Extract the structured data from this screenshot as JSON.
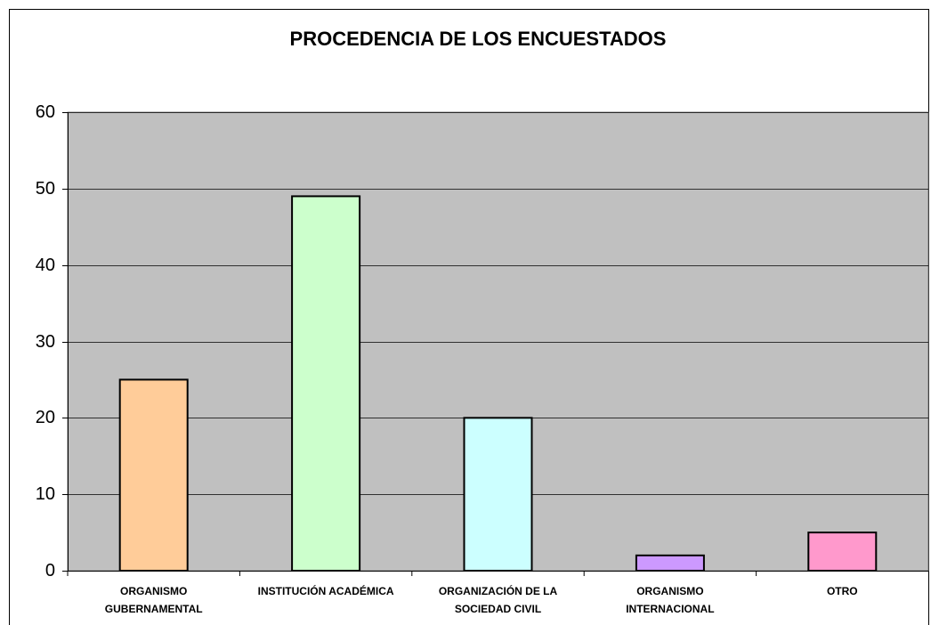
{
  "chart_data": {
    "type": "bar",
    "title": "PROCEDENCIA DE LOS ENCUESTADOS",
    "categories": [
      "ORGANISMO GUBERNAMENTAL",
      "INSTITUCIÓN ACADÉMICA",
      "ORGANIZACIÓN DE LA SOCIEDAD CIVIL",
      "ORGANISMO INTERNACIONAL",
      "OTRO"
    ],
    "values": [
      25,
      49,
      20,
      2,
      5
    ],
    "colors": [
      "#ffcc99",
      "#ccffcc",
      "#ccffff",
      "#cc99ff",
      "#ff99cc"
    ],
    "ylim": [
      0,
      60
    ],
    "yticks": [
      0,
      10,
      20,
      30,
      40,
      50,
      60
    ],
    "grid": true
  }
}
